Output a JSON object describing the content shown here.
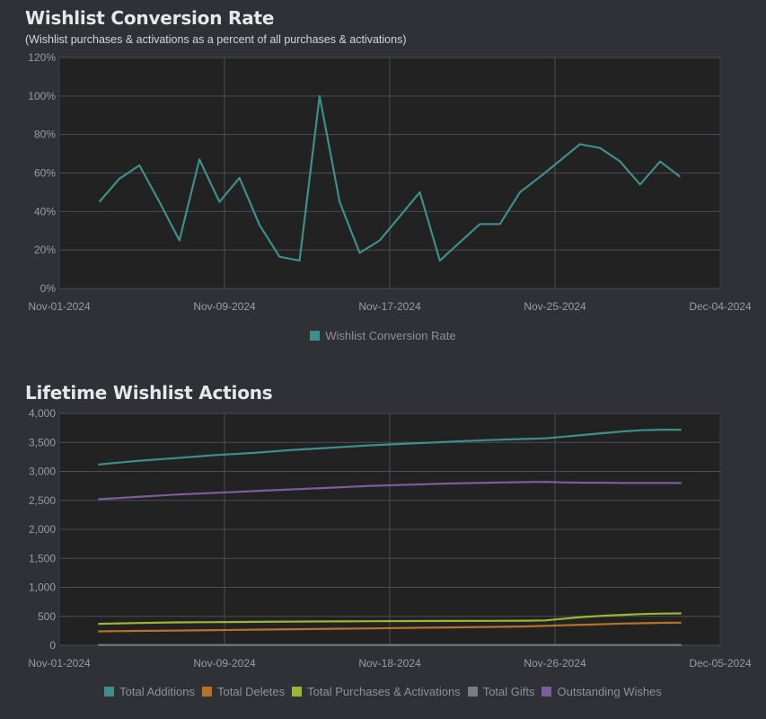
{
  "chart_data": [
    {
      "type": "line",
      "title": "Wishlist Conversion Rate",
      "subtitle": "(Wishlist purchases & activations as a percent of all purchases & activations)",
      "x_ticks": [
        "Nov-01-2024",
        "Nov-09-2024",
        "Nov-17-2024",
        "Nov-25-2024",
        "Dec-04-2024"
      ],
      "x_range": [
        "2024-11-01",
        "2024-12-04"
      ],
      "y_ticks": [
        "0%",
        "20%",
        "40%",
        "60%",
        "80%",
        "100%",
        "120%"
      ],
      "ylim": [
        0,
        120
      ],
      "grid": true,
      "legend_position": "bottom",
      "series": [
        {
          "name": "Wishlist Conversion Rate",
          "color": "#3e8e8a",
          "x": [
            "2024-11-03",
            "2024-11-04",
            "2024-11-05",
            "2024-11-06",
            "2024-11-07",
            "2024-11-08",
            "2024-11-09",
            "2024-11-10",
            "2024-11-11",
            "2024-11-12",
            "2024-11-13",
            "2024-11-14",
            "2024-11-15",
            "2024-11-16",
            "2024-11-17",
            "2024-11-18",
            "2024-11-19",
            "2024-11-20",
            "2024-11-21",
            "2024-11-22",
            "2024-11-23",
            "2024-11-24",
            "2024-11-25",
            "2024-11-26",
            "2024-11-27",
            "2024-11-28",
            "2024-11-29",
            "2024-11-30",
            "2024-12-01",
            "2024-12-02"
          ],
          "values": [
            45,
            57,
            64,
            45,
            25,
            67,
            45,
            57.5,
            33,
            16.5,
            14.5,
            100,
            45,
            18.5,
            25,
            37.5,
            50,
            14.5,
            24,
            33.5,
            33.5,
            50,
            58,
            66.5,
            75,
            73,
            66,
            54,
            66,
            58
          ]
        }
      ]
    },
    {
      "type": "line",
      "title": "Lifetime Wishlist Actions",
      "x_ticks": [
        "Nov-01-2024",
        "Nov-09-2024",
        "Nov-18-2024",
        "Nov-26-2024",
        "Dec-05-2024"
      ],
      "x_range": [
        "2024-11-01",
        "2024-12-05"
      ],
      "y_ticks": [
        "0",
        "500",
        "1,000",
        "1,500",
        "2,000",
        "2,500",
        "3,000",
        "3,500",
        "4,000"
      ],
      "ylim": [
        0,
        4000
      ],
      "grid": true,
      "legend_position": "bottom",
      "x": [
        "2024-11-03",
        "2024-11-05",
        "2024-11-07",
        "2024-11-09",
        "2024-11-11",
        "2024-11-13",
        "2024-11-15",
        "2024-11-17",
        "2024-11-19",
        "2024-11-21",
        "2024-11-23",
        "2024-11-25",
        "2024-11-26",
        "2024-11-27",
        "2024-11-28",
        "2024-11-29",
        "2024-11-30",
        "2024-12-01",
        "2024-12-02",
        "2024-12-03"
      ],
      "series": [
        {
          "name": "Total Additions",
          "color": "#3e8e8a",
          "values": [
            3120,
            3180,
            3230,
            3280,
            3320,
            3370,
            3410,
            3450,
            3480,
            3510,
            3540,
            3560,
            3570,
            3600,
            3630,
            3660,
            3690,
            3710,
            3720,
            3720
          ]
        },
        {
          "name": "Total Deletes",
          "color": "#b5722a",
          "values": [
            240,
            248,
            255,
            262,
            270,
            278,
            285,
            292,
            300,
            308,
            316,
            325,
            335,
            345,
            355,
            365,
            375,
            382,
            388,
            390
          ]
        },
        {
          "name": "Total Purchases & Activations",
          "color": "#9ab734",
          "values": [
            370,
            385,
            395,
            400,
            405,
            410,
            413,
            415,
            418,
            420,
            422,
            425,
            430,
            460,
            490,
            510,
            525,
            540,
            548,
            550
          ]
        },
        {
          "name": "Total Gifts",
          "color": "#7a7c80",
          "values": [
            5,
            5,
            5,
            5,
            5,
            5,
            5,
            5,
            5,
            5,
            5,
            5,
            5,
            5,
            5,
            5,
            5,
            5,
            5,
            5
          ]
        },
        {
          "name": "Outstanding Wishes",
          "color": "#7a5d9a",
          "values": [
            2520,
            2560,
            2600,
            2630,
            2660,
            2690,
            2720,
            2750,
            2770,
            2790,
            2805,
            2815,
            2820,
            2810,
            2805,
            2805,
            2800,
            2800,
            2800,
            2800
          ]
        }
      ]
    }
  ]
}
